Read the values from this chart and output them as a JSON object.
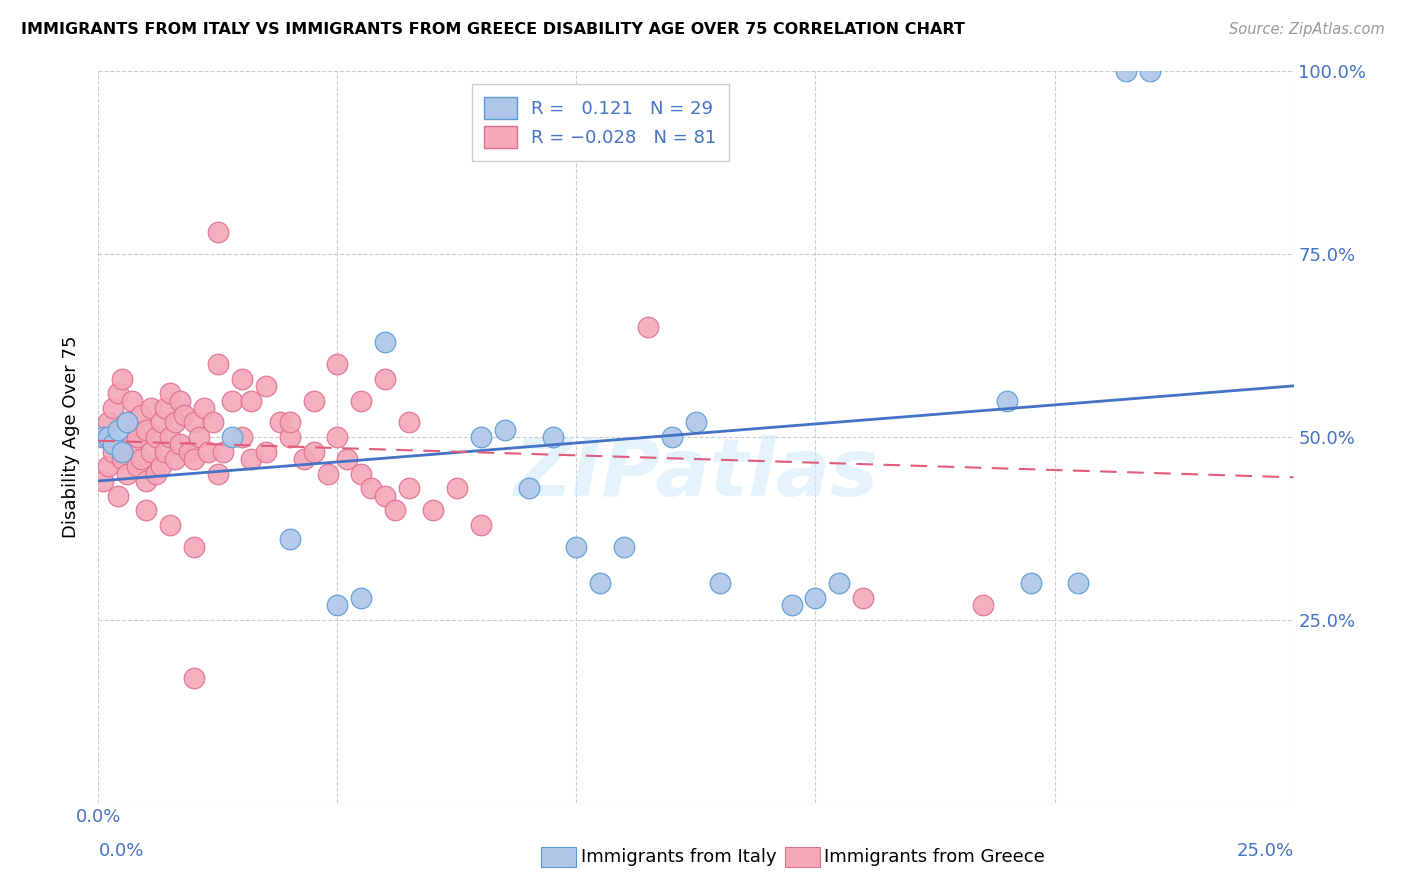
{
  "title": "IMMIGRANTS FROM ITALY VS IMMIGRANTS FROM GREECE DISABILITY AGE OVER 75 CORRELATION CHART",
  "source": "Source: ZipAtlas.com",
  "ylabel": "Disability Age Over 75",
  "x_min": 0.0,
  "x_max": 0.25,
  "y_min": 0.0,
  "y_max": 1.0,
  "italy_color": "#aec6e8",
  "greece_color": "#f4a8b8",
  "italy_edge_color": "#5b9bd5",
  "greece_edge_color": "#e07090",
  "italy_trendline_color": "#4472c4",
  "greece_trendline_color": "#e05c7a",
  "italy_R": 0.121,
  "italy_N": 29,
  "greece_R": -0.028,
  "greece_N": 81,
  "watermark": "ZIPatlas",
  "italy_x": [
    0.001,
    0.002,
    0.003,
    0.004,
    0.005,
    0.006,
    0.028,
    0.04,
    0.05,
    0.055,
    0.06,
    0.08,
    0.085,
    0.09,
    0.095,
    0.1,
    0.105,
    0.11,
    0.12,
    0.125,
    0.13,
    0.145,
    0.15,
    0.155,
    0.19,
    0.195,
    0.205,
    0.215,
    0.22
  ],
  "italy_y": [
    0.5,
    0.5,
    0.49,
    0.51,
    0.48,
    0.52,
    0.5,
    0.36,
    0.27,
    0.28,
    0.63,
    0.5,
    0.51,
    0.43,
    0.5,
    0.35,
    0.3,
    0.35,
    0.5,
    0.52,
    0.3,
    0.27,
    0.28,
    0.3,
    0.55,
    0.3,
    0.3,
    1.0,
    1.0
  ],
  "greece_x": [
    0.001,
    0.001,
    0.002,
    0.002,
    0.003,
    0.003,
    0.004,
    0.004,
    0.005,
    0.005,
    0.006,
    0.006,
    0.007,
    0.007,
    0.008,
    0.008,
    0.009,
    0.009,
    0.01,
    0.01,
    0.011,
    0.011,
    0.012,
    0.012,
    0.013,
    0.013,
    0.014,
    0.014,
    0.015,
    0.015,
    0.016,
    0.016,
    0.017,
    0.017,
    0.018,
    0.019,
    0.02,
    0.02,
    0.021,
    0.022,
    0.023,
    0.024,
    0.025,
    0.026,
    0.028,
    0.03,
    0.032,
    0.035,
    0.038,
    0.04,
    0.043,
    0.045,
    0.048,
    0.05,
    0.052,
    0.055,
    0.057,
    0.06,
    0.062,
    0.065,
    0.025,
    0.03,
    0.032,
    0.035,
    0.04,
    0.045,
    0.05,
    0.055,
    0.06,
    0.065,
    0.07,
    0.075,
    0.08,
    0.01,
    0.015,
    0.02,
    0.025,
    0.115,
    0.16,
    0.185,
    0.02
  ],
  "greece_y": [
    0.5,
    0.44,
    0.52,
    0.46,
    0.54,
    0.48,
    0.56,
    0.42,
    0.58,
    0.47,
    0.45,
    0.52,
    0.49,
    0.55,
    0.46,
    0.5,
    0.53,
    0.47,
    0.44,
    0.51,
    0.48,
    0.54,
    0.45,
    0.5,
    0.52,
    0.46,
    0.54,
    0.48,
    0.56,
    0.5,
    0.52,
    0.47,
    0.55,
    0.49,
    0.53,
    0.48,
    0.52,
    0.47,
    0.5,
    0.54,
    0.48,
    0.52,
    0.45,
    0.48,
    0.55,
    0.5,
    0.47,
    0.48,
    0.52,
    0.5,
    0.47,
    0.48,
    0.45,
    0.5,
    0.47,
    0.45,
    0.43,
    0.42,
    0.4,
    0.43,
    0.6,
    0.58,
    0.55,
    0.57,
    0.52,
    0.55,
    0.6,
    0.55,
    0.58,
    0.52,
    0.4,
    0.43,
    0.38,
    0.4,
    0.38,
    0.35,
    0.78,
    0.65,
    0.28,
    0.27,
    0.17
  ],
  "italy_trendline_x": [
    0.0,
    0.25
  ],
  "italy_trendline_y": [
    0.44,
    0.57
  ],
  "greece_trendline_x": [
    0.0,
    0.25
  ],
  "greece_trendline_y": [
    0.495,
    0.445
  ]
}
